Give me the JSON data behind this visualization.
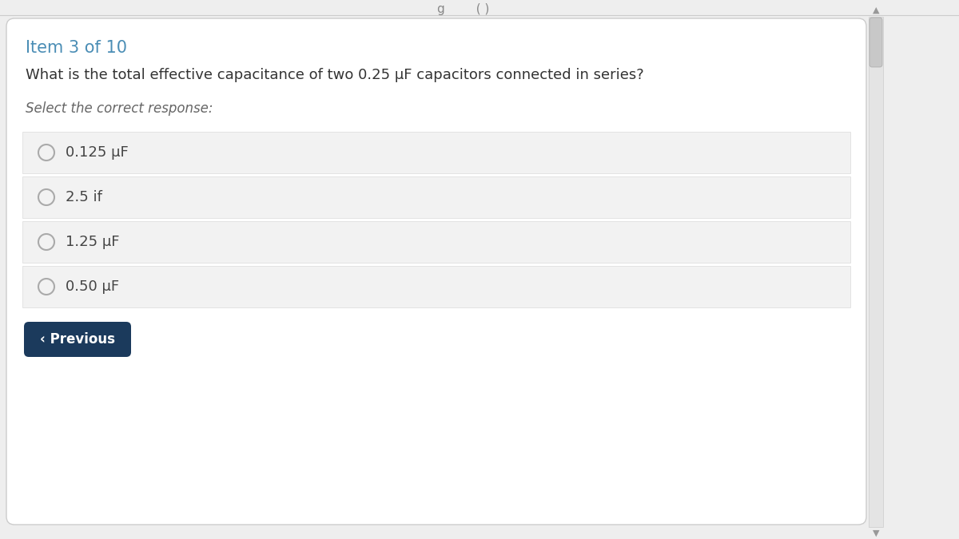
{
  "title_text": "Item 3 of 10",
  "title_color": "#4a8db5",
  "question_text": "What is the total effective capacitance of two 0.25 μF capacitors connected in series?",
  "question_color": "#333333",
  "instruction_text": "Select the correct response:",
  "instruction_color": "#666666",
  "options": [
    "0.125 μF",
    "2.5 if",
    "1.25 μF",
    "0.50 μF"
  ],
  "option_text_color": "#444444",
  "option_bg_color": "#f2f2f2",
  "option_border_color": "#e0e0e0",
  "radio_border_color": "#aaaaaa",
  "radio_fill_color": "#f2f2f2",
  "card_bg_color": "#ffffff",
  "card_border_color": "#cccccc",
  "page_bg_color": "#eeeeee",
  "button_bg_color": "#1b3a5c",
  "button_text_color": "#ffffff",
  "button_text": "‹ Previous",
  "scrollbar_bg_color": "#e4e4e4",
  "scrollbar_handle_color": "#c8c8c8",
  "top_text_color": "#888888"
}
